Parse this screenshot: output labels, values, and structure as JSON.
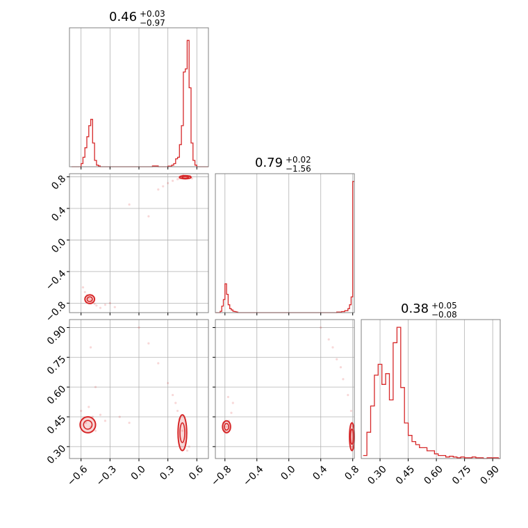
{
  "colors": {
    "accent": "#d62728",
    "frame": "#808080",
    "grid": "#b0b0b0",
    "text": "#000000"
  },
  "chart_data": [
    {
      "type": "histogram",
      "panel": "row1-col1",
      "title": {
        "main": "0.46",
        "sup": "+0.03",
        "sub": "−0.97"
      },
      "xlim": [
        -0.72,
        0.72
      ],
      "xticks": [
        -0.6,
        -0.3,
        0.0,
        0.3,
        0.6
      ],
      "bins_x": [
        -0.7,
        -0.68,
        -0.66,
        -0.64,
        -0.62,
        -0.6,
        -0.58,
        -0.56,
        -0.54,
        -0.52,
        -0.5,
        -0.48,
        -0.46,
        -0.44,
        -0.42,
        -0.4,
        -0.36,
        -0.3,
        -0.2,
        -0.1,
        0.0,
        0.1,
        0.14,
        0.2,
        0.26,
        0.3,
        0.34,
        0.36,
        0.38,
        0.4,
        0.42,
        0.44,
        0.46,
        0.48,
        0.5,
        0.52,
        0.54,
        0.56,
        0.58,
        0.6,
        0.64,
        0.68
      ],
      "bins_y": [
        0,
        0,
        0,
        0,
        0,
        0.02,
        0.06,
        0.12,
        0.19,
        0.26,
        0.3,
        0.15,
        0.04,
        0.01,
        0.005,
        0,
        0,
        0,
        0,
        0,
        0,
        0,
        0.005,
        0,
        0,
        0.004,
        0.01,
        0.02,
        0.05,
        0.06,
        0.14,
        0.26,
        0.6,
        0.62,
        0.8,
        0.5,
        0.15,
        0.04,
        0.01,
        0,
        0,
        0
      ],
      "ymax": 0.88
    },
    {
      "type": "histogram",
      "panel": "row2-col2",
      "title": {
        "main": "0.79",
        "sup": "+0.02",
        "sub": "−1.56"
      },
      "xlim": [
        -0.92,
        0.82
      ],
      "xticks": [
        -0.8,
        -0.4,
        0.0,
        0.4,
        0.8
      ],
      "bins_x": [
        -0.92,
        -0.88,
        -0.86,
        -0.84,
        -0.82,
        -0.8,
        -0.78,
        -0.76,
        -0.74,
        -0.72,
        -0.7,
        -0.68,
        -0.66,
        -0.64,
        -0.6,
        -0.5,
        0.0,
        0.5,
        0.6,
        0.66,
        0.7,
        0.74,
        0.76,
        0.78,
        0.8
      ],
      "bins_y": [
        0,
        0,
        0.01,
        0.05,
        0.1,
        0.22,
        0.14,
        0.06,
        0.03,
        0.02,
        0.01,
        0.008,
        0.004,
        0,
        0,
        0,
        0,
        0,
        0.005,
        0.008,
        0.015,
        0.03,
        0.06,
        0.12,
        1.0
      ],
      "ymax": 1.06
    },
    {
      "type": "histogram",
      "panel": "row3-col3",
      "title": {
        "main": "0.38",
        "sup": "+0.05",
        "sub": "−0.08"
      },
      "xlim": [
        0.2,
        0.94
      ],
      "xticks": [
        0.3,
        0.45,
        0.6,
        0.75,
        0.9
      ],
      "xtick_labels": [
        "0.30",
        "0.45",
        "0.60",
        "0.75",
        "0.90"
      ],
      "bins_x": [
        0.21,
        0.23,
        0.25,
        0.27,
        0.29,
        0.31,
        0.33,
        0.35,
        0.37,
        0.39,
        0.41,
        0.43,
        0.45,
        0.47,
        0.49,
        0.51,
        0.53,
        0.55,
        0.57,
        0.59,
        0.61,
        0.63,
        0.65,
        0.67,
        0.69,
        0.71,
        0.73,
        0.75,
        0.77,
        0.79,
        0.81,
        0.83,
        0.85,
        0.87,
        0.89,
        0.91,
        0.93
      ],
      "bins_y": [
        0.02,
        0.17,
        0.34,
        0.54,
        0.61,
        0.48,
        0.55,
        0.38,
        0.75,
        0.85,
        0.46,
        0.23,
        0.15,
        0.11,
        0.09,
        0.07,
        0.07,
        0.05,
        0.05,
        0.03,
        0.02,
        0.02,
        0.01,
        0.015,
        0.01,
        0.005,
        0.01,
        0.005,
        0.005,
        0.01,
        0.005,
        0.005,
        0,
        0.005,
        0.005,
        0.005,
        0
      ],
      "ymax": 0.9
    },
    {
      "type": "scatter",
      "panel": "row2-col1",
      "xlim": [
        -0.72,
        0.72
      ],
      "ylim": [
        -0.92,
        0.84
      ],
      "xticks": [
        -0.6,
        -0.3,
        0.0,
        0.3,
        0.6
      ],
      "yticks": [
        -0.8,
        -0.4,
        0.0,
        0.4,
        0.8
      ],
      "ytick_labels": [
        "−0.8",
        "−0.4",
        "0.0",
        "0.4",
        "0.8"
      ],
      "points": [
        [
          0.42,
          0.78
        ],
        [
          0.45,
          0.8
        ],
        [
          0.48,
          0.81
        ],
        [
          0.5,
          0.79
        ],
        [
          0.52,
          0.8
        ],
        [
          0.4,
          0.77
        ],
        [
          0.55,
          0.78
        ],
        [
          0.46,
          0.82
        ],
        [
          0.44,
          0.79
        ],
        [
          0.53,
          0.81
        ],
        [
          0.35,
          0.75
        ],
        [
          0.3,
          0.72
        ],
        [
          0.25,
          0.68
        ],
        [
          0.2,
          0.64
        ],
        [
          -0.1,
          0.45
        ],
        [
          0.1,
          0.3
        ],
        [
          -0.58,
          -0.6
        ],
        [
          -0.56,
          -0.66
        ],
        [
          -0.54,
          -0.7
        ],
        [
          -0.52,
          -0.74
        ],
        [
          -0.5,
          -0.76
        ],
        [
          -0.48,
          -0.79
        ],
        [
          -0.46,
          -0.81
        ],
        [
          -0.44,
          -0.83
        ],
        [
          -0.4,
          -0.86
        ],
        [
          -0.35,
          -0.82
        ],
        [
          -0.3,
          -0.8
        ],
        [
          -0.25,
          -0.85
        ]
      ],
      "contours": [
        {
          "cx": 0.48,
          "cy": 0.795,
          "rx": 0.06,
          "ry": 0.02
        },
        {
          "cx": -0.51,
          "cy": -0.75,
          "rx": 0.05,
          "ry": 0.055
        }
      ]
    },
    {
      "type": "scatter",
      "panel": "row3-col1",
      "xlim": [
        -0.72,
        0.72
      ],
      "ylim": [
        0.24,
        0.94
      ],
      "xticks": [
        -0.6,
        -0.3,
        0.0,
        0.3,
        0.6
      ],
      "xtick_labels": [
        "−0.6",
        "−0.3",
        "0.0",
        "0.3",
        "0.6"
      ],
      "yticks": [
        0.3,
        0.45,
        0.6,
        0.75,
        0.9
      ],
      "ytick_labels": [
        "0.30",
        "0.45",
        "0.60",
        "0.75",
        "0.90"
      ],
      "points": [
        [
          -0.6,
          0.48
        ],
        [
          -0.58,
          0.44
        ],
        [
          -0.55,
          0.42
        ],
        [
          -0.5,
          0.4
        ],
        [
          -0.48,
          0.45
        ],
        [
          -0.45,
          0.38
        ],
        [
          -0.52,
          0.5
        ],
        [
          -0.4,
          0.46
        ],
        [
          -0.35,
          0.43
        ],
        [
          -0.5,
          0.8
        ],
        [
          -0.45,
          0.6
        ],
        [
          0.0,
          0.9
        ],
        [
          0.1,
          0.82
        ],
        [
          0.2,
          0.72
        ],
        [
          0.3,
          0.62
        ],
        [
          0.38,
          0.52
        ],
        [
          0.42,
          0.44
        ],
        [
          0.45,
          0.38
        ],
        [
          0.48,
          0.32
        ],
        [
          0.5,
          0.28
        ],
        [
          0.52,
          0.3
        ],
        [
          0.4,
          0.48
        ],
        [
          0.35,
          0.56
        ],
        [
          -0.2,
          0.45
        ],
        [
          -0.1,
          0.42
        ]
      ],
      "contours": [
        {
          "cx": -0.53,
          "cy": 0.41,
          "rx": 0.08,
          "ry": 0.04
        },
        {
          "cx": 0.45,
          "cy": 0.37,
          "rx": 0.045,
          "ry": 0.09
        }
      ]
    },
    {
      "type": "scatter",
      "panel": "row3-col2",
      "xlim": [
        -0.92,
        0.82
      ],
      "ylim": [
        0.24,
        0.94
      ],
      "xticks": [
        -0.8,
        -0.4,
        0.0,
        0.4,
        0.8
      ],
      "xtick_labels": [
        "−0.8",
        "−0.4",
        "0.0",
        "0.4",
        "0.8"
      ],
      "yticks": [
        0.3,
        0.45,
        0.6,
        0.75,
        0.9
      ],
      "points": [
        [
          -0.8,
          0.38
        ],
        [
          -0.78,
          0.4
        ],
        [
          -0.75,
          0.43
        ],
        [
          -0.72,
          0.47
        ],
        [
          -0.7,
          0.52
        ],
        [
          -0.76,
          0.55
        ],
        [
          -0.82,
          0.42
        ],
        [
          0.4,
          0.9
        ],
        [
          0.5,
          0.84
        ],
        [
          0.6,
          0.74
        ],
        [
          0.68,
          0.64
        ],
        [
          0.74,
          0.56
        ],
        [
          0.78,
          0.48
        ],
        [
          0.8,
          0.4
        ],
        [
          0.81,
          0.34
        ],
        [
          0.8,
          0.3
        ],
        [
          0.65,
          0.7
        ],
        [
          0.55,
          0.8
        ]
      ],
      "contours": [
        {
          "cx": -0.78,
          "cy": 0.4,
          "rx": 0.05,
          "ry": 0.03
        },
        {
          "cx": 0.79,
          "cy": 0.35,
          "rx": 0.03,
          "ry": 0.07
        }
      ]
    }
  ]
}
